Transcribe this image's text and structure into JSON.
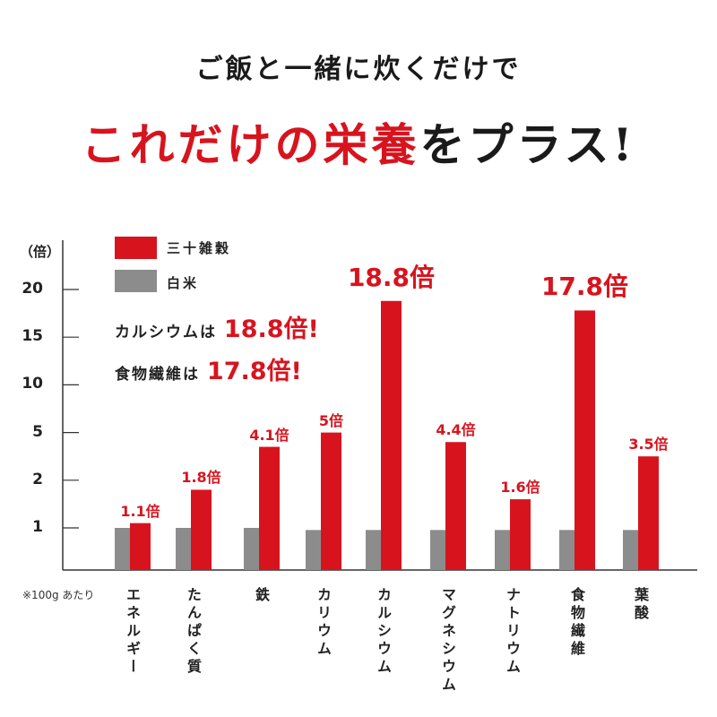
{
  "header": {
    "line1": "ご飯と一緒に炊くだけで",
    "line2_red": "これだけの栄養",
    "line2_black": "をプラス!"
  },
  "callouts": [
    {
      "text": "カルシウムは",
      "value": "18.8倍!"
    },
    {
      "text": "食物繊維は",
      "value": "17.8倍!"
    }
  ],
  "note": "※100g あたり",
  "colors": {
    "accent": "#d7141e",
    "gray": "#8c8c8c"
  },
  "chart_data": {
    "type": "bar",
    "ylabel": "（倍）",
    "yticks": [
      1,
      2,
      5,
      10,
      15,
      20
    ],
    "ytick_labels": [
      "1",
      "2",
      "5",
      "10",
      "15",
      "20"
    ],
    "scale": "non-linear (evenly spaced ticks)",
    "legend": "top-left",
    "categories": [
      "エネルギー",
      "たんぱく質",
      "鉄",
      "カリウム",
      "カルシウム",
      "マグネシウム",
      "ナトリウム",
      "食物繊維",
      "葉酸"
    ],
    "series": [
      {
        "name": "三十雑穀",
        "color": "#d7141e",
        "values": [
          1.1,
          1.8,
          4.1,
          5,
          18.8,
          4.4,
          1.6,
          17.8,
          3.5
        ],
        "labels": [
          "1.1倍",
          "1.8倍",
          "4.1倍",
          "5倍",
          "18.8倍",
          "4.4倍",
          "1.6倍",
          "17.8倍",
          "3.5倍"
        ]
      },
      {
        "name": "白米",
        "color": "#8c8c8c",
        "values": [
          1,
          1,
          1,
          0.95,
          0.95,
          0.95,
          0.95,
          0.95,
          0.95
        ]
      }
    ]
  }
}
